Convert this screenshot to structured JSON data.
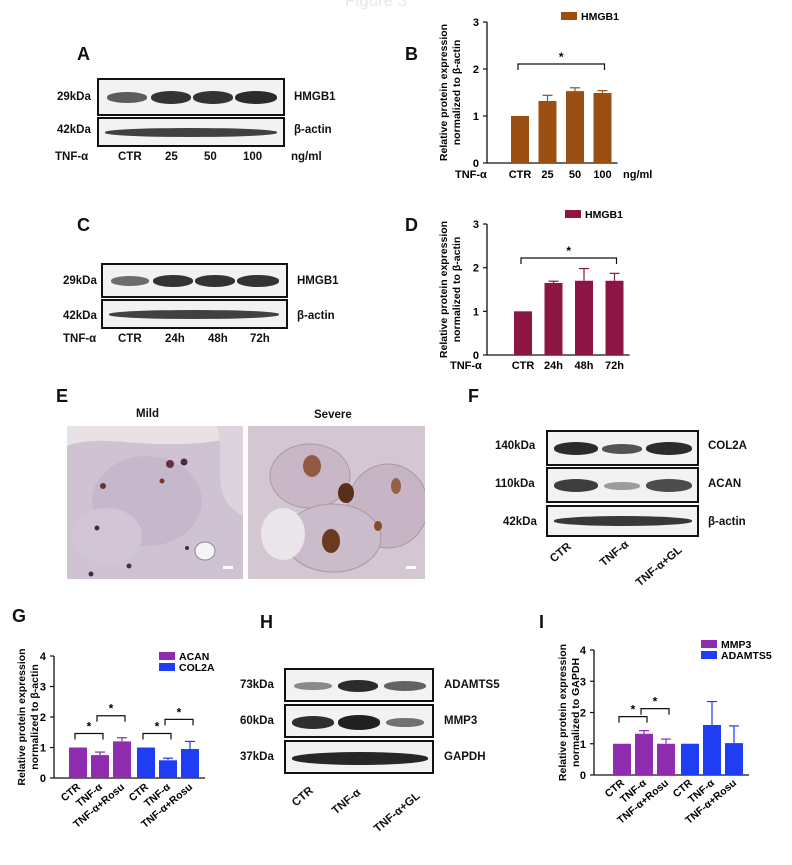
{
  "figure_title": "Figure 3",
  "panels": {
    "A": {
      "letter": "A",
      "size_labels": [
        "29kDa",
        "42kDa"
      ],
      "protein_labels": [
        "HMGB1",
        "β-actin"
      ],
      "treatment": "TNF-α",
      "lanes": [
        "CTR",
        "25",
        "50",
        "100"
      ],
      "unit": "ng/ml"
    },
    "C": {
      "letter": "C",
      "size_labels": [
        "29kDa",
        "42kDa"
      ],
      "protein_labels": [
        "HMGB1",
        "β-actin"
      ],
      "treatment": "TNF-α",
      "lanes": [
        "CTR",
        "24h",
        "48h",
        "72h"
      ]
    },
    "E": {
      "letter": "E",
      "captions": [
        "Mild",
        "Severe"
      ]
    },
    "F": {
      "letter": "F",
      "size_labels": [
        "140kDa",
        "110kDa",
        "42kDa"
      ],
      "protein_labels": [
        "COL2A",
        "ACAN",
        "β-actin"
      ],
      "lanes": [
        "CTR",
        "TNF-α",
        "TNF-α+GL"
      ]
    },
    "H": {
      "letter": "H",
      "size_labels": [
        "73kDa",
        "60kDa",
        "37kDa"
      ],
      "protein_labels": [
        "ADAMTS5",
        "MMP3",
        "GAPDH"
      ],
      "lanes": [
        "CTR",
        "TNF-α",
        "TNF-α+GL"
      ]
    },
    "B": {
      "letter": "B"
    },
    "D": {
      "letter": "D"
    },
    "G": {
      "letter": "G"
    },
    "I": {
      "letter": "I"
    }
  },
  "chart_data": [
    {
      "panel": "B",
      "type": "bar",
      "ylabel": "Relative protein expression normalized to β-actin",
      "ylim": [
        0,
        3
      ],
      "yticks": [
        0,
        1,
        2,
        3
      ],
      "group_prefix": "TNF-α",
      "unit_suffix": "ng/ml",
      "categories": [
        "CTR",
        "25",
        "50",
        "100"
      ],
      "series": [
        {
          "name": "HMGB1",
          "color": "#9b4f12",
          "values": [
            1.0,
            1.32,
            1.53,
            1.49
          ],
          "errors": [
            0,
            0.12,
            0.07,
            0.05
          ]
        }
      ],
      "significance": [
        {
          "from": 0,
          "to": 3,
          "label": "*"
        }
      ],
      "legend": "top-right"
    },
    {
      "panel": "D",
      "type": "bar",
      "ylabel": "Relative protein expression normalized to β-actin",
      "ylim": [
        0,
        3
      ],
      "yticks": [
        0,
        1,
        2,
        3
      ],
      "group_prefix": "TNF-α",
      "categories": [
        "CTR",
        "24h",
        "48h",
        "72h"
      ],
      "series": [
        {
          "name": "HMGB1",
          "color": "#8c1544",
          "values": [
            1.0,
            1.65,
            1.7,
            1.7
          ],
          "errors": [
            0,
            0.04,
            0.28,
            0.17
          ]
        }
      ],
      "significance": [
        {
          "from": 0,
          "to": 3,
          "label": "*"
        }
      ],
      "legend": "top-right"
    },
    {
      "panel": "G",
      "type": "bar",
      "ylabel": "Relative protein expression normalized to β-actin",
      "ylim": [
        0,
        4
      ],
      "yticks": [
        0,
        1,
        2,
        3,
        4
      ],
      "categories": [
        "CTR",
        "TNF-α",
        "TNF-α+Rosu"
      ],
      "series": [
        {
          "name": "ACAN",
          "color": "#8f2cb0",
          "values": [
            1.0,
            0.75,
            1.2
          ],
          "errors": [
            0,
            0.1,
            0.12
          ]
        },
        {
          "name": "COL2A",
          "color": "#1f3df2",
          "values": [
            1.0,
            0.58,
            0.95
          ],
          "errors": [
            0,
            0.07,
            0.25
          ]
        }
      ],
      "significance": [
        {
          "series": 0,
          "from": 0,
          "to": 1,
          "label": "*"
        },
        {
          "series": 0,
          "from": 1,
          "to": 2,
          "label": "*"
        },
        {
          "series": 1,
          "from": 0,
          "to": 1,
          "label": "*"
        },
        {
          "series": 1,
          "from": 1,
          "to": 2,
          "label": "*"
        }
      ],
      "legend": "top-right"
    },
    {
      "panel": "I",
      "type": "bar",
      "ylabel": "Relative protein expression normalized to GAPDH",
      "ylim": [
        0,
        4
      ],
      "yticks": [
        0,
        1,
        2,
        3,
        4
      ],
      "categories": [
        "CTR",
        "TNF-α",
        "TNF-α+Rosu"
      ],
      "series": [
        {
          "name": "MMP3",
          "color": "#8f2cb0",
          "values": [
            1.0,
            1.32,
            1.0
          ],
          "errors": [
            0,
            0.1,
            0.15
          ]
        },
        {
          "name": "ADAMTS5",
          "color": "#1f3df2",
          "values": [
            1.0,
            1.6,
            1.02
          ],
          "errors": [
            0,
            0.75,
            0.55
          ]
        }
      ],
      "significance": [
        {
          "series": 0,
          "from": 0,
          "to": 1,
          "label": "*"
        },
        {
          "series": 0,
          "from": 1,
          "to": 2,
          "label": "*"
        }
      ],
      "legend": "top-right"
    }
  ]
}
